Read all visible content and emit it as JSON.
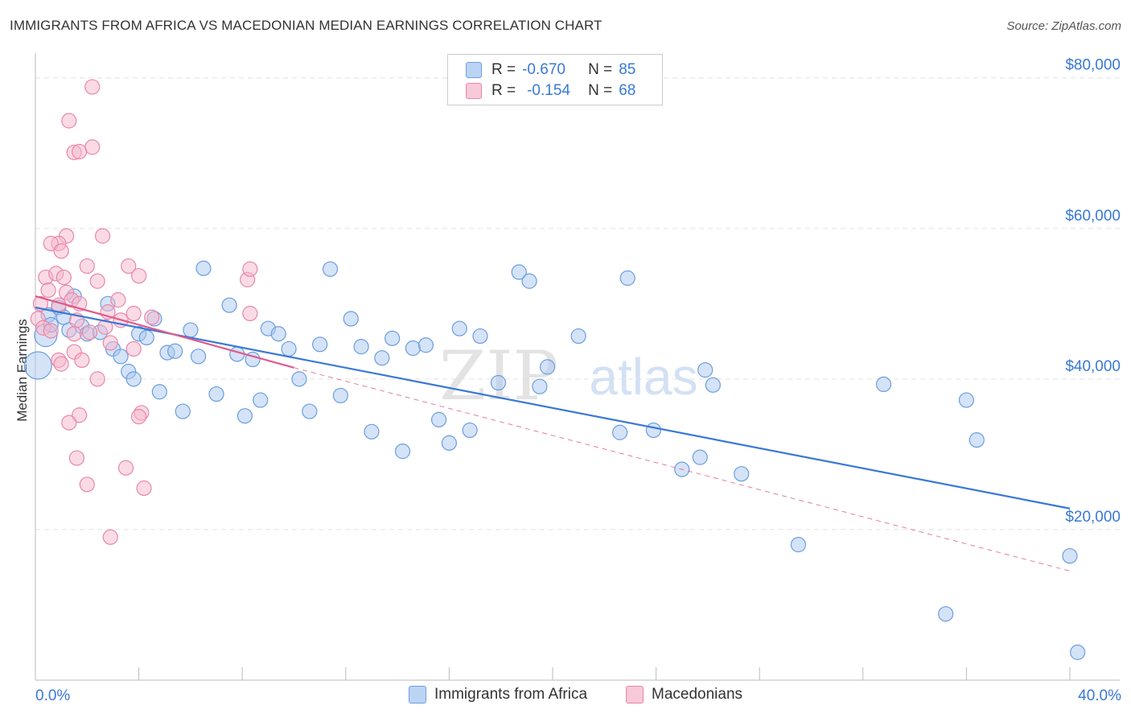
{
  "header": {
    "title": "IMMIGRANTS FROM AFRICA VS MACEDONIAN MEDIAN EARNINGS CORRELATION CHART",
    "source": "Source: ZipAtlas.com"
  },
  "legend": {
    "rows": [
      {
        "r_label": "R =",
        "r_value": "-0.670",
        "n_label": "N =",
        "n_value": "85"
      },
      {
        "r_label": "R =",
        "r_value": "-0.154",
        "n_label": "N =",
        "n_value": "68"
      }
    ]
  },
  "colors": {
    "blue_fill": "#a9c8ef",
    "blue_stroke": "#6b9ee0",
    "blue_line": "#3a78d6",
    "pink_fill": "#f5b8cc",
    "pink_stroke": "#ea86a8",
    "pink_line": "#e05a8a",
    "grid": "#e2e2e2",
    "accent_text": "#3a78d6"
  },
  "watermark": {
    "zip": "ZIP",
    "atlas": "atlas"
  },
  "chart_data": {
    "type": "scatter",
    "title": "IMMIGRANTS FROM AFRICA VS MACEDONIAN MEDIAN EARNINGS CORRELATION CHART",
    "xlabel": "",
    "ylabel": "Median Earnings",
    "xlim": [
      0,
      40
    ],
    "ylim": [
      0,
      82000
    ],
    "x_tick_labels": [
      "0.0%",
      "40.0%"
    ],
    "y_ticks": [
      20000,
      40000,
      60000,
      80000
    ],
    "y_tick_labels": [
      "$20,000",
      "$40,000",
      "$60,000",
      "$80,000"
    ],
    "grid": true,
    "legend_position": "top-center",
    "series": [
      {
        "name": "Immigrants from Africa",
        "color": "#a9c8ef",
        "trend": {
          "x": [
            0,
            40
          ],
          "y": [
            49500,
            22800
          ]
        },
        "points": [
          [
            0.1,
            41800
          ],
          [
            0.4,
            45800
          ],
          [
            0.5,
            48500
          ],
          [
            0.6,
            47200
          ],
          [
            0.9,
            49500
          ],
          [
            1.1,
            48200
          ],
          [
            1.3,
            46500
          ],
          [
            1.5,
            51000
          ],
          [
            1.8,
            47000
          ],
          [
            2.0,
            46000
          ],
          [
            2.5,
            46200
          ],
          [
            2.8,
            50000
          ],
          [
            3.0,
            44000
          ],
          [
            3.3,
            43000
          ],
          [
            3.6,
            41000
          ],
          [
            3.8,
            40000
          ],
          [
            4.0,
            46000
          ],
          [
            4.3,
            45500
          ],
          [
            4.6,
            48000
          ],
          [
            4.8,
            38300
          ],
          [
            5.1,
            43500
          ],
          [
            5.4,
            43700
          ],
          [
            5.7,
            35700
          ],
          [
            6.0,
            46500
          ],
          [
            6.3,
            43000
          ],
          [
            6.5,
            54700
          ],
          [
            7.0,
            38000
          ],
          [
            7.5,
            49800
          ],
          [
            7.8,
            43300
          ],
          [
            8.1,
            35100
          ],
          [
            8.4,
            42600
          ],
          [
            8.7,
            37200
          ],
          [
            9.0,
            46700
          ],
          [
            9.4,
            46000
          ],
          [
            9.8,
            44000
          ],
          [
            10.2,
            40000
          ],
          [
            10.6,
            35700
          ],
          [
            11.0,
            44600
          ],
          [
            11.4,
            54600
          ],
          [
            11.8,
            37800
          ],
          [
            12.2,
            48000
          ],
          [
            12.6,
            44300
          ],
          [
            13.0,
            33000
          ],
          [
            13.4,
            42800
          ],
          [
            13.8,
            45400
          ],
          [
            14.2,
            30400
          ],
          [
            14.6,
            44100
          ],
          [
            15.1,
            44500
          ],
          [
            15.6,
            34600
          ],
          [
            16.0,
            31500
          ],
          [
            16.4,
            46700
          ],
          [
            16.8,
            33200
          ],
          [
            17.2,
            45700
          ],
          [
            17.9,
            39500
          ],
          [
            18.7,
            54200
          ],
          [
            19.1,
            53000
          ],
          [
            19.5,
            39000
          ],
          [
            19.8,
            41600
          ],
          [
            21.0,
            45700
          ],
          [
            22.6,
            32900
          ],
          [
            22.9,
            53400
          ],
          [
            23.9,
            33200
          ],
          [
            25.0,
            28000
          ],
          [
            25.7,
            29600
          ],
          [
            25.9,
            41200
          ],
          [
            26.2,
            39200
          ],
          [
            27.3,
            27400
          ],
          [
            29.5,
            18000
          ],
          [
            32.8,
            39300
          ],
          [
            35.2,
            8800
          ],
          [
            36.0,
            37200
          ],
          [
            36.4,
            31900
          ],
          [
            40.0,
            16500
          ],
          [
            40.3,
            3700
          ]
        ]
      },
      {
        "name": "Macedonians",
        "color": "#f5b8cc",
        "trend": {
          "x": [
            0,
            10
          ],
          "y": [
            51000,
            41500
          ]
        },
        "trend_extension": {
          "x": [
            10,
            40
          ],
          "y": [
            41500,
            14500
          ]
        },
        "points": [
          [
            2.2,
            78800
          ],
          [
            1.3,
            74300
          ],
          [
            2.2,
            70800
          ],
          [
            1.5,
            70100
          ],
          [
            1.7,
            70200
          ],
          [
            2.6,
            59000
          ],
          [
            1.2,
            59000
          ],
          [
            0.9,
            58000
          ],
          [
            0.6,
            58000
          ],
          [
            1.0,
            57000
          ],
          [
            2.0,
            55000
          ],
          [
            3.6,
            55000
          ],
          [
            0.4,
            53500
          ],
          [
            0.8,
            54000
          ],
          [
            1.1,
            53500
          ],
          [
            2.4,
            53000
          ],
          [
            4.0,
            53700
          ],
          [
            8.2,
            53200
          ],
          [
            8.3,
            54600
          ],
          [
            0.5,
            51800
          ],
          [
            1.2,
            51500
          ],
          [
            1.4,
            50500
          ],
          [
            0.2,
            50000
          ],
          [
            1.7,
            50000
          ],
          [
            3.2,
            50500
          ],
          [
            0.9,
            49800
          ],
          [
            2.8,
            48900
          ],
          [
            3.8,
            48700
          ],
          [
            8.3,
            48700
          ],
          [
            0.1,
            48000
          ],
          [
            1.6,
            47800
          ],
          [
            2.7,
            46900
          ],
          [
            3.3,
            47800
          ],
          [
            4.5,
            48200
          ],
          [
            0.3,
            46800
          ],
          [
            1.5,
            46000
          ],
          [
            0.6,
            46400
          ],
          [
            2.1,
            46200
          ],
          [
            2.9,
            44800
          ],
          [
            3.8,
            44000
          ],
          [
            1.5,
            43600
          ],
          [
            1.8,
            42500
          ],
          [
            0.9,
            42500
          ],
          [
            1.0,
            42000
          ],
          [
            2.4,
            40000
          ],
          [
            4.1,
            35500
          ],
          [
            4.0,
            35000
          ],
          [
            1.7,
            35200
          ],
          [
            1.3,
            34200
          ],
          [
            1.6,
            29500
          ],
          [
            3.5,
            28200
          ],
          [
            2.0,
            26000
          ],
          [
            4.2,
            25500
          ],
          [
            2.9,
            19000
          ]
        ]
      }
    ]
  },
  "bottom_legend": {
    "items": [
      {
        "label": "Immigrants from Africa"
      },
      {
        "label": "Macedonians"
      }
    ]
  }
}
